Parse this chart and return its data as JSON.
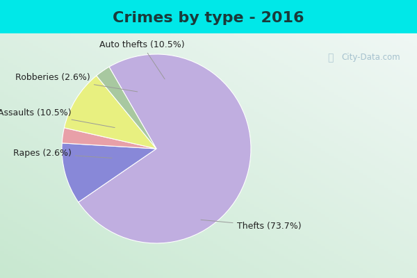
{
  "title": "Crimes by type - 2016",
  "slices": [
    {
      "label": "Thefts (73.7%)",
      "value": 73.7,
      "color": "#c0aee0"
    },
    {
      "label": "Auto thefts (10.5%)",
      "value": 10.5,
      "color": "#8888d8"
    },
    {
      "label": "Robberies (2.6%)",
      "value": 2.6,
      "color": "#e8a0a8"
    },
    {
      "label": "Assaults (10.5%)",
      "value": 10.5,
      "color": "#e8f080"
    },
    {
      "label": "Rapes (2.6%)",
      "value": 2.6,
      "color": "#a8c8a0"
    }
  ],
  "title_fontsize": 16,
  "label_fontsize": 9,
  "watermark": "City-Data.com",
  "cyan_bar": "#00e8e8",
  "bg_gradient_left": "#c8e8d0",
  "bg_gradient_right": "#e8f0f0"
}
